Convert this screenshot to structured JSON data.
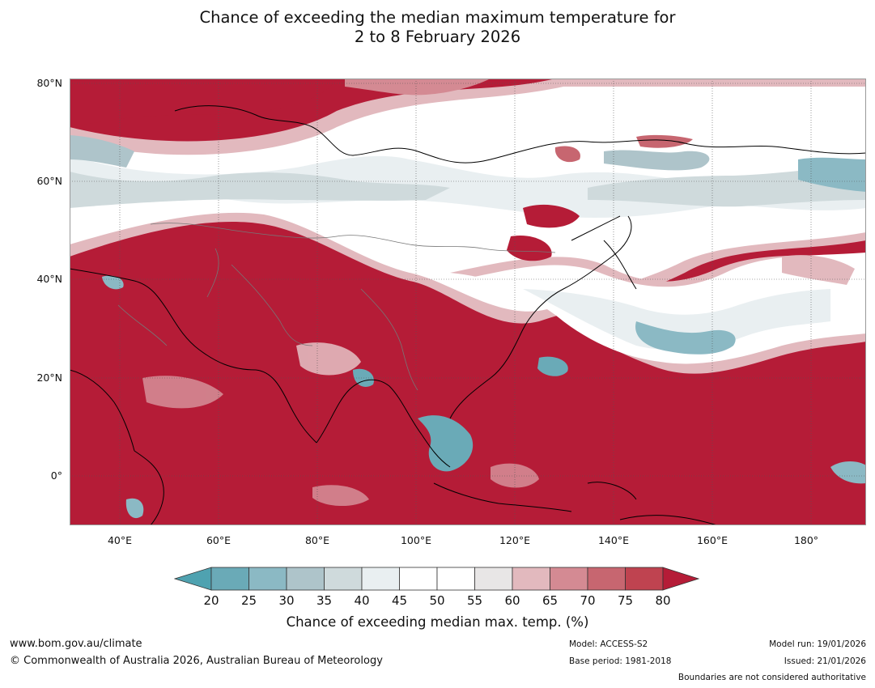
{
  "title_line1": "Chance of exceeding the median maximum temperature for",
  "title_line2": "2 to 8 February 2026",
  "map": {
    "lat_labels": [
      "80°N",
      "60°N",
      "40°N",
      "20°N",
      "0°"
    ],
    "lon_labels": [
      "40°E",
      "60°E",
      "80°E",
      "100°E",
      "120°E",
      "140°E",
      "160°E",
      "180°"
    ],
    "extent": {
      "lon_min": 30,
      "lon_max": 191,
      "lat_min": -10,
      "lat_max": 81
    }
  },
  "colorbar": {
    "ticks": [
      "20",
      "25",
      "30",
      "35",
      "40",
      "45",
      "50",
      "55",
      "60",
      "65",
      "70",
      "75",
      "80"
    ],
    "colors": [
      "#4fa2b0",
      "#6aaab7",
      "#8bb9c4",
      "#aec4ca",
      "#cfdadc",
      "#e9eff1",
      "#ffffff",
      "#ffffff",
      "#e8e6e6",
      "#e2b9be",
      "#d48a93",
      "#c76670",
      "#bf4350",
      "#b51c37"
    ],
    "caption": "Chance of exceeding median max. temp. (%)"
  },
  "colors": {
    "hot": "#b51c37",
    "warm": "#d48a93",
    "cool": "#6aaab7",
    "neutral": "#e9eff1"
  },
  "footer": {
    "website": "www.bom.gov.au/climate",
    "copyright": "© Commonwealth of Australia 2026, Australian Bureau of Meteorology",
    "model": "Model: ACCESS-S2",
    "base_period": "Base period: 1981-2018",
    "model_run": "Model run: 19/01/2026",
    "issued": "Issued: 21/01/2026",
    "disclaimer": "Boundaries are not considered authoritative"
  }
}
